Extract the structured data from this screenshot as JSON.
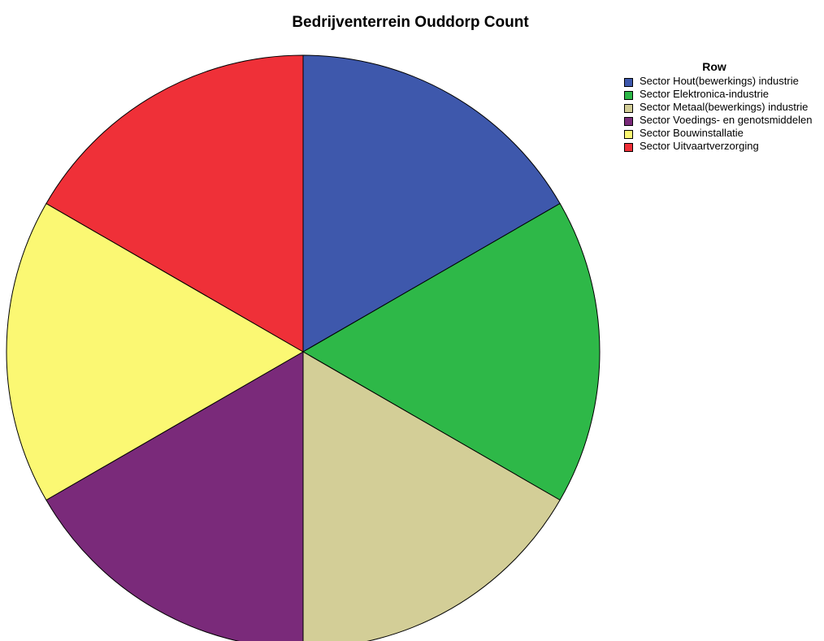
{
  "chart_data": {
    "type": "pie",
    "title": "Bedrijventerrein Ouddorp Count",
    "legend_title": "Row",
    "legend": "right",
    "categories": [
      "Sector Hout(bewerkings) industrie",
      "Sector Elektronica-industrie",
      "Sector Metaal(bewerkings) industrie",
      "Sector Voedings- en genotsmiddelen",
      "Sector Bouwinstallatie",
      "Sector Uitvaartverzorging"
    ],
    "values": [
      1,
      1,
      1,
      1,
      1,
      1
    ],
    "colors": [
      "#3e58ac",
      "#2eb848",
      "#d3ce97",
      "#7a2a7a",
      "#fbf873",
      "#ef3038"
    ]
  }
}
